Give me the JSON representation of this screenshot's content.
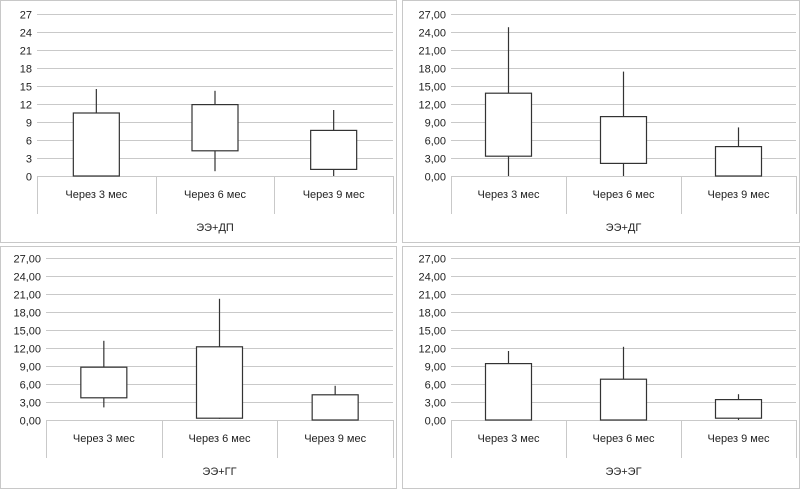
{
  "chart_data": [
    {
      "type": "box",
      "title": "ЭЭ+ДП",
      "ylim": [
        0,
        27
      ],
      "yticks": [
        "0",
        "3",
        "6",
        "9",
        "12",
        "15",
        "18",
        "21",
        "24",
        "27"
      ],
      "categories": [
        "Через 3  мес",
        "Через 6 мес",
        "Через 9 мес"
      ],
      "boxes": [
        {
          "min": 0,
          "q1": 0,
          "q3": 10.5,
          "max": 14.5
        },
        {
          "min": 0.8,
          "q1": 4.2,
          "q3": 11.9,
          "max": 14.2
        },
        {
          "min": 0,
          "q1": 1.1,
          "q3": 7.6,
          "max": 11
        }
      ],
      "grid": true
    },
    {
      "type": "box",
      "title": "ЭЭ+ДГ",
      "ylim": [
        0,
        27
      ],
      "yticks": [
        "0,00",
        "3,00",
        "6,00",
        "9,00",
        "12,00",
        "15,00",
        "18,00",
        "21,00",
        "24,00",
        "27,00"
      ],
      "categories": [
        "Через 3  мес",
        "Через 6 мес",
        "Через 9 мес"
      ],
      "boxes": [
        {
          "min": 0,
          "q1": 3.3,
          "q3": 13.8,
          "max": 24.8
        },
        {
          "min": 0,
          "q1": 2.1,
          "q3": 9.9,
          "max": 17.4
        },
        {
          "min": 0,
          "q1": 0,
          "q3": 4.9,
          "max": 8.1
        }
      ],
      "grid": true
    },
    {
      "type": "box",
      "title": "ЭЭ+ГГ",
      "ylim": [
        0,
        27
      ],
      "yticks": [
        "0,00",
        "3,00",
        "6,00",
        "9,00",
        "12,00",
        "15,00",
        "18,00",
        "21,00",
        "24,00",
        "27,00"
      ],
      "categories": [
        "Через 3  мес",
        "Через 6 мес",
        "Через 9 мес"
      ],
      "boxes": [
        {
          "min": 2.1,
          "q1": 3.7,
          "q3": 8.8,
          "max": 13.2
        },
        {
          "min": 0.2,
          "q1": 0.3,
          "q3": 12.2,
          "max": 20.2
        },
        {
          "min": 0,
          "q1": 0,
          "q3": 4.2,
          "max": 5.7
        }
      ],
      "grid": true
    },
    {
      "type": "box",
      "title": "ЭЭ+ЭГ",
      "ylim": [
        0,
        27
      ],
      "yticks": [
        "0,00",
        "3,00",
        "6,00",
        "9,00",
        "12,00",
        "15,00",
        "18,00",
        "21,00",
        "24,00",
        "27,00"
      ],
      "categories": [
        "Через 3  мес",
        "Через 6 мес",
        "Через 9 мес"
      ],
      "boxes": [
        {
          "min": 0,
          "q1": 0,
          "q3": 9.4,
          "max": 11.5
        },
        {
          "min": 0,
          "q1": 0,
          "q3": 6.8,
          "max": 12.2
        },
        {
          "min": 0,
          "q1": 0.3,
          "q3": 3.4,
          "max": 4.3
        }
      ],
      "grid": true
    }
  ]
}
